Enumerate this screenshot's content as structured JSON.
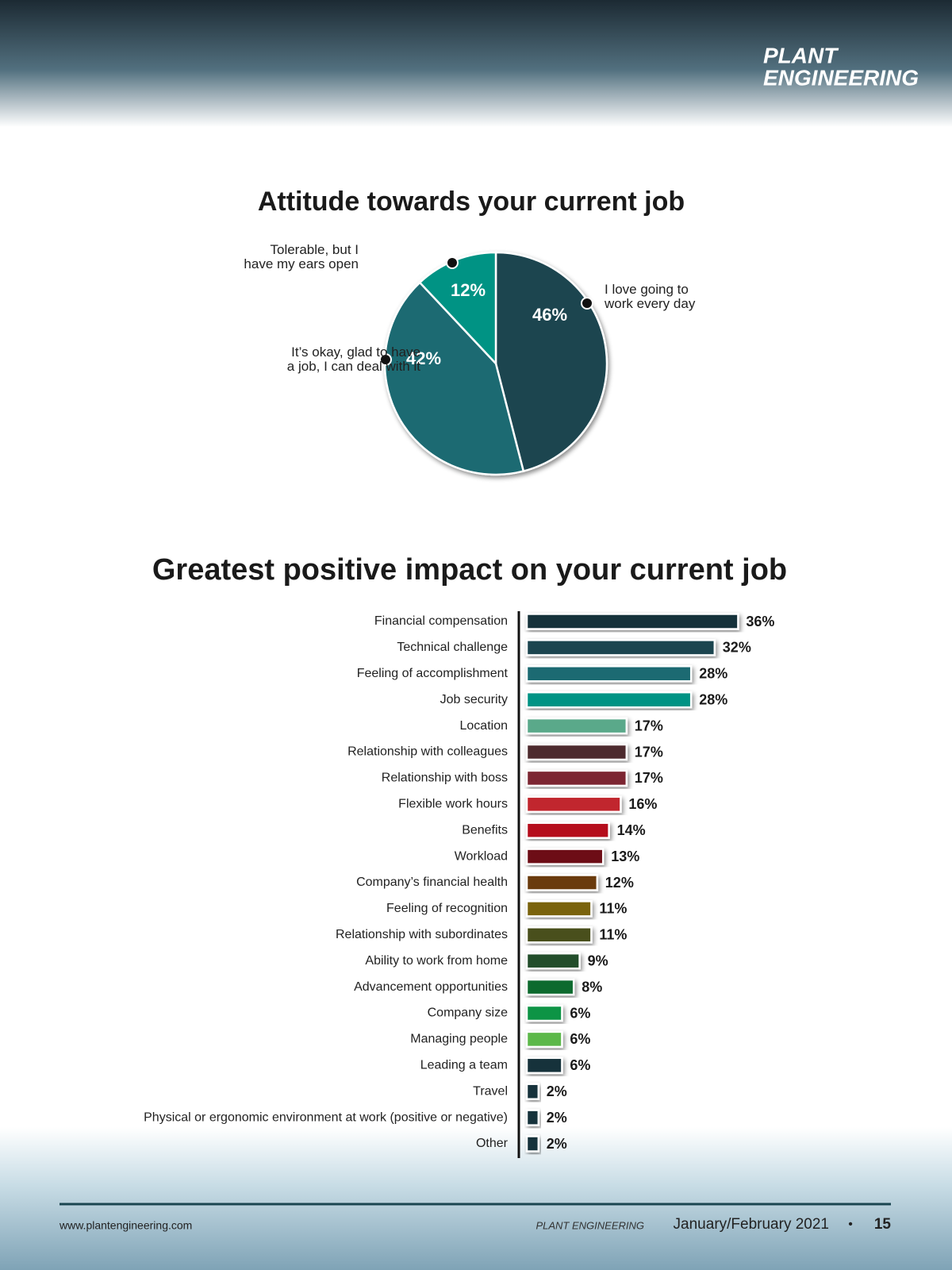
{
  "header": {
    "brand_line1": "PLANT",
    "brand_line2": "ENGINEERING"
  },
  "chart_data": [
    {
      "type": "pie",
      "title": "Attitude towards your current job",
      "categories": [
        "I love going to work every day",
        "It’s okay, glad to have a job, I can deal with it",
        "Tolerable, but I have my ears open"
      ],
      "values": [
        46,
        42,
        12
      ],
      "value_labels": [
        "46%",
        "42%",
        "12%"
      ],
      "colors": [
        "#1a4550",
        "#1b6a72",
        "#009384"
      ]
    },
    {
      "type": "hbar",
      "title": "Greatest positive impact on your current job",
      "categories": [
        "Financial compensation",
        "Technical challenge",
        "Feeling of accomplishment",
        "Job security",
        "Location",
        "Relationship with colleagues",
        "Relationship with boss",
        "Flexible work hours",
        "Benefits",
        "Workload",
        "Company’s financial health",
        "Feeling of recognition",
        "Relationship with subordinates",
        "Ability to work from home",
        "Advancement opportunities",
        "Company size",
        "Managing people",
        "Leading a team",
        "Travel",
        "Physical or ergonomic environment at work (positive or negative)",
        "Other"
      ],
      "values": [
        36,
        32,
        28,
        28,
        17,
        17,
        17,
        16,
        14,
        13,
        12,
        11,
        11,
        9,
        8,
        6,
        6,
        6,
        2,
        2,
        2
      ],
      "value_labels": [
        "36%",
        "32%",
        "28%",
        "28%",
        "17%",
        "17%",
        "17%",
        "16%",
        "14%",
        "13%",
        "12%",
        "11%",
        "11%",
        "9%",
        "8%",
        "6%",
        "6%",
        "6%",
        "2%",
        "2%",
        "2%"
      ],
      "colors": [
        "#13303a",
        "#1a4550",
        "#1b6a72",
        "#009384",
        "#5aa98a",
        "#4e2a2d",
        "#7b2530",
        "#c1272d",
        "#b5101f",
        "#6d0a14",
        "#6a3a0c",
        "#7a6410",
        "#4a4f1a",
        "#234d2a",
        "#0d6b2f",
        "#0a9444",
        "#5cb84a",
        "#13303a",
        "#13303a",
        "#13303a",
        "#13303a"
      ]
    }
  ],
  "footer": {
    "url": "www.plantengineering.com",
    "magazine": "PLANT ENGINEERING",
    "issue": "January/February 2021",
    "separator": "•",
    "page": "15"
  }
}
